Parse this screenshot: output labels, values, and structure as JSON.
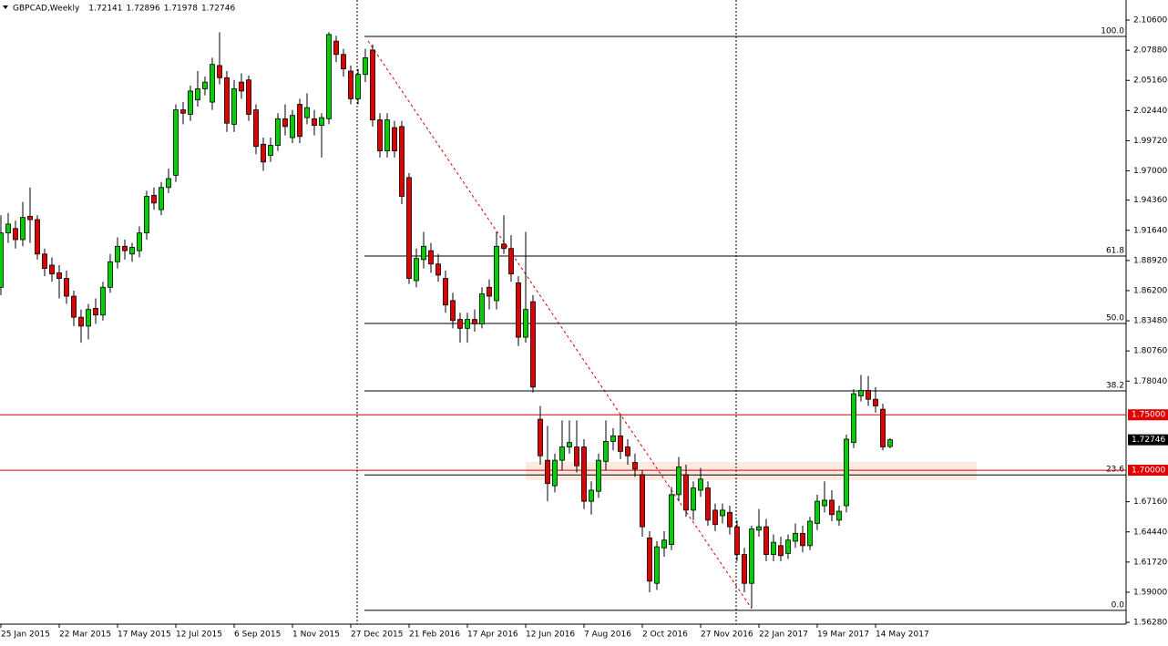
{
  "chart_data": {
    "type": "candlestick",
    "title": "GBPCAD,Weekly",
    "header_values": [
      {
        "value": 1.72141,
        "label": "1.72141"
      },
      {
        "value": 1.72896,
        "label": "1.72896"
      },
      {
        "value": 1.71978,
        "label": "1.71978"
      },
      {
        "value": 1.72746,
        "label": "1.72746"
      }
    ],
    "categories": [
      "25 Jan 2015",
      null,
      null,
      null,
      null,
      null,
      null,
      null,
      "22 Mar 2015",
      null,
      null,
      null,
      null,
      null,
      null,
      null,
      "17 May 2015",
      null,
      null,
      null,
      null,
      null,
      null,
      null,
      "12 Jul 2015",
      null,
      null,
      null,
      null,
      null,
      null,
      null,
      "6 Sep 2015",
      null,
      null,
      null,
      null,
      null,
      null,
      null,
      "1 Nov 2015",
      null,
      null,
      null,
      null,
      null,
      null,
      null,
      "27 Dec 2015",
      null,
      null,
      null,
      null,
      null,
      null,
      null,
      "21 Feb 2016",
      null,
      null,
      null,
      null,
      null,
      null,
      null,
      "17 Apr 2016",
      null,
      null,
      null,
      null,
      null,
      null,
      null,
      "12 Jun 2016",
      null,
      null,
      null,
      null,
      null,
      null,
      null,
      "7 Aug 2016",
      null,
      null,
      null,
      null,
      null,
      null,
      null,
      "2 Oct 2016",
      null,
      null,
      null,
      null,
      null,
      null,
      null,
      "27 Nov 2016",
      null,
      null,
      null,
      null,
      null,
      null,
      null,
      "22 Jan 2017",
      null,
      null,
      null,
      null,
      null,
      null,
      null,
      "19 Mar 2017",
      null,
      null,
      null,
      null,
      null,
      null,
      null,
      "14 May 2017",
      null,
      null
    ],
    "open": [
      1.865,
      1.914,
      1.918,
      1.908,
      1.929,
      1.926,
      1.895,
      1.885,
      1.878,
      1.873,
      1.857,
      1.838,
      1.83,
      1.846,
      1.84,
      1.865,
      1.888,
      1.902,
      1.895,
      1.898,
      1.914,
      1.948,
      1.935,
      1.955,
      1.966,
      2.025,
      2.021,
      2.034,
      2.044,
      2.032,
      2.065,
      2.054,
      2.012,
      2.05,
      2.052,
      2.025,
      1.994,
      1.984,
      1.993,
      2.017,
      2.0,
      2.03,
      2.018,
      2.017,
      2.011,
      2.017,
      2.087,
      2.075,
      2.06,
      2.035,
      2.057,
      2.079,
      2.016,
      1.988,
      2.009,
      2.01,
      1.964,
      1.871,
      1.89,
      1.898,
      1.886,
      1.873,
      1.853,
      1.836,
      1.828,
      1.836,
      1.832,
      1.865,
      1.853,
      1.904,
      1.9,
      1.869,
      1.82,
      1.852,
      1.746,
      1.709,
      1.686,
      1.709,
      1.721,
      1.721,
      1.721,
      1.672,
      1.681,
      1.708,
      1.726,
      1.731,
      1.721,
      1.707,
      1.696,
      1.639,
      1.598,
      1.63,
      1.633,
      1.678,
      1.696,
      1.664,
      1.682,
      1.684,
      1.664,
      1.659,
      1.662,
      1.649,
      1.624,
      1.598,
      1.646,
      1.649,
      1.624,
      1.632,
      1.625,
      1.636,
      1.643,
      1.632,
      1.652,
      1.668,
      1.673,
      1.655,
      1.668,
      1.725,
      1.767,
      1.772,
      1.764,
      1.755,
      1.72141
    ],
    "high": [
      1.93,
      1.932,
      1.925,
      1.942,
      1.955,
      1.93,
      1.9,
      1.892,
      1.885,
      1.88,
      1.862,
      1.845,
      1.85,
      1.855,
      1.87,
      1.895,
      1.91,
      1.908,
      1.905,
      1.92,
      1.952,
      1.955,
      1.96,
      1.972,
      2.03,
      2.032,
      2.047,
      2.06,
      2.055,
      2.072,
      2.095,
      2.06,
      2.052,
      2.058,
      2.056,
      2.03,
      2.0,
      2.0,
      2.022,
      2.03,
      2.025,
      2.035,
      2.04,
      2.025,
      2.022,
      2.095,
      2.092,
      2.08,
      2.065,
      2.062,
      2.08,
      2.084,
      2.022,
      2.022,
      2.015,
      2.015,
      1.968,
      1.9,
      1.915,
      1.905,
      1.895,
      1.88,
      1.86,
      1.842,
      1.842,
      1.845,
      1.865,
      1.872,
      1.915,
      1.93,
      1.912,
      1.875,
      1.915,
      1.858,
      1.758,
      1.74,
      1.715,
      1.745,
      1.745,
      1.745,
      1.728,
      1.69,
      1.715,
      1.745,
      1.738,
      1.75,
      1.728,
      1.715,
      1.7,
      1.645,
      1.636,
      1.645,
      1.685,
      1.712,
      1.705,
      1.69,
      1.702,
      1.69,
      1.67,
      1.67,
      1.668,
      1.655,
      1.63,
      1.65,
      1.665,
      1.656,
      1.642,
      1.64,
      1.642,
      1.652,
      1.65,
      1.658,
      1.678,
      1.69,
      1.682,
      1.668,
      1.732,
      1.773,
      1.786,
      1.785,
      1.775,
      1.76,
      1.72896
    ],
    "low": [
      1.858,
      1.905,
      1.9,
      1.902,
      1.905,
      1.89,
      1.875,
      1.87,
      1.855,
      1.85,
      1.83,
      1.815,
      1.818,
      1.832,
      1.835,
      1.86,
      1.882,
      1.89,
      1.888,
      1.892,
      1.908,
      1.935,
      1.93,
      1.95,
      1.96,
      2.012,
      2.015,
      2.028,
      2.038,
      2.025,
      2.048,
      2.005,
      2.005,
      2.035,
      2.015,
      1.985,
      1.97,
      1.978,
      1.988,
      2.002,
      1.995,
      1.995,
      2.012,
      2.002,
      1.982,
      2.012,
      2.068,
      2.055,
      2.03,
      2.03,
      2.05,
      2.01,
      1.982,
      1.982,
      1.982,
      1.94,
      1.868,
      1.865,
      1.882,
      1.878,
      1.87,
      1.842,
      1.828,
      1.815,
      1.815,
      1.825,
      1.828,
      1.845,
      1.845,
      1.895,
      1.87,
      1.812,
      1.815,
      1.77,
      1.705,
      1.672,
      1.68,
      1.7,
      1.715,
      1.698,
      1.665,
      1.66,
      1.675,
      1.7,
      1.718,
      1.71,
      1.705,
      1.694,
      1.64,
      1.59,
      1.592,
      1.622,
      1.628,
      1.672,
      1.658,
      1.655,
      1.676,
      1.65,
      1.645,
      1.652,
      1.642,
      1.618,
      1.59,
      1.576,
      1.64,
      1.618,
      1.618,
      1.618,
      1.62,
      1.63,
      1.626,
      1.628,
      1.646,
      1.662,
      1.654,
      1.65,
      1.662,
      1.72,
      1.762,
      1.758,
      1.752,
      1.718,
      1.71978
    ],
    "close": [
      1.914,
      1.922,
      1.908,
      1.928,
      1.926,
      1.895,
      1.882,
      1.877,
      1.873,
      1.857,
      1.838,
      1.83,
      1.845,
      1.84,
      1.865,
      1.888,
      1.902,
      1.898,
      1.901,
      1.914,
      1.947,
      1.941,
      1.955,
      1.963,
      2.025,
      2.022,
      2.042,
      2.044,
      2.05,
      2.066,
      2.054,
      2.013,
      2.044,
      2.042,
      2.021,
      1.992,
      1.978,
      1.993,
      2.017,
      2.01,
      2.02,
      2.001,
      2.027,
      2.011,
      2.018,
      2.093,
      2.075,
      2.062,
      2.035,
      2.057,
      2.072,
      2.016,
      1.988,
      2.016,
      1.988,
      1.947,
      1.873,
      1.891,
      1.902,
      1.886,
      1.876,
      1.849,
      1.835,
      1.828,
      1.836,
      1.832,
      1.859,
      1.857,
      1.902,
      1.9,
      1.877,
      1.82,
      1.845,
      1.775,
      1.713,
      1.688,
      1.709,
      1.721,
      1.725,
      1.704,
      1.672,
      1.682,
      1.709,
      1.726,
      1.731,
      1.717,
      1.713,
      1.701,
      1.649,
      1.6,
      1.631,
      1.637,
      1.678,
      1.703,
      1.664,
      1.684,
      1.692,
      1.655,
      1.651,
      1.664,
      1.649,
      1.624,
      1.598,
      1.647,
      1.649,
      1.624,
      1.635,
      1.623,
      1.637,
      1.643,
      1.632,
      1.654,
      1.672,
      1.673,
      1.66,
      1.663,
      1.728,
      1.769,
      1.772,
      1.764,
      1.758,
      1.721,
      1.72746
    ],
    "up_color": "#00d000",
    "down_color": "#e00000",
    "ylim": [
      1.5612,
      2.1241
    ],
    "yticks": [
      {
        "value": 2.106,
        "label": "2.10600"
      },
      {
        "value": 2.0788,
        "label": "2.07880"
      },
      {
        "value": 2.0516,
        "label": "2.05160"
      },
      {
        "value": 2.0244,
        "label": "2.02440"
      },
      {
        "value": 1.9972,
        "label": "1.99720"
      },
      {
        "value": 1.97,
        "label": "1.97000"
      },
      {
        "value": 1.9436,
        "label": "1.94360"
      },
      {
        "value": 1.9164,
        "label": "1.91640"
      },
      {
        "value": 1.8892,
        "label": "1.88920"
      },
      {
        "value": 1.862,
        "label": "1.86200"
      },
      {
        "value": 1.8348,
        "label": "1.83480"
      },
      {
        "value": 1.8076,
        "label": "1.80760"
      },
      {
        "value": 1.7804,
        "label": "1.78040"
      },
      {
        "value": 1.6716,
        "label": "1.67160"
      },
      {
        "value": 1.6444,
        "label": "1.64440"
      },
      {
        "value": 1.6172,
        "label": "1.61720"
      },
      {
        "value": 1.59,
        "label": "1.59000"
      },
      {
        "value": 1.5628,
        "label": "1.56280"
      }
    ],
    "fib_levels": [
      {
        "value": 2.0912,
        "label": "100.0"
      },
      {
        "value": 1.8932,
        "label": "61.8"
      },
      {
        "value": 1.8324,
        "label": "50.0"
      },
      {
        "value": 1.7716,
        "label": "38.2"
      },
      {
        "value": 1.6958,
        "label": "23.6"
      },
      {
        "value": 1.5736,
        "label": "0.0"
      }
    ],
    "hlines": [
      {
        "value": 1.75,
        "label": "1.75000",
        "color": "#e00000"
      },
      {
        "value": 1.7,
        "label": "1.70000",
        "color": "#e00000"
      }
    ],
    "last_price": {
      "value": 1.72746,
      "label": "1.72746"
    }
  }
}
